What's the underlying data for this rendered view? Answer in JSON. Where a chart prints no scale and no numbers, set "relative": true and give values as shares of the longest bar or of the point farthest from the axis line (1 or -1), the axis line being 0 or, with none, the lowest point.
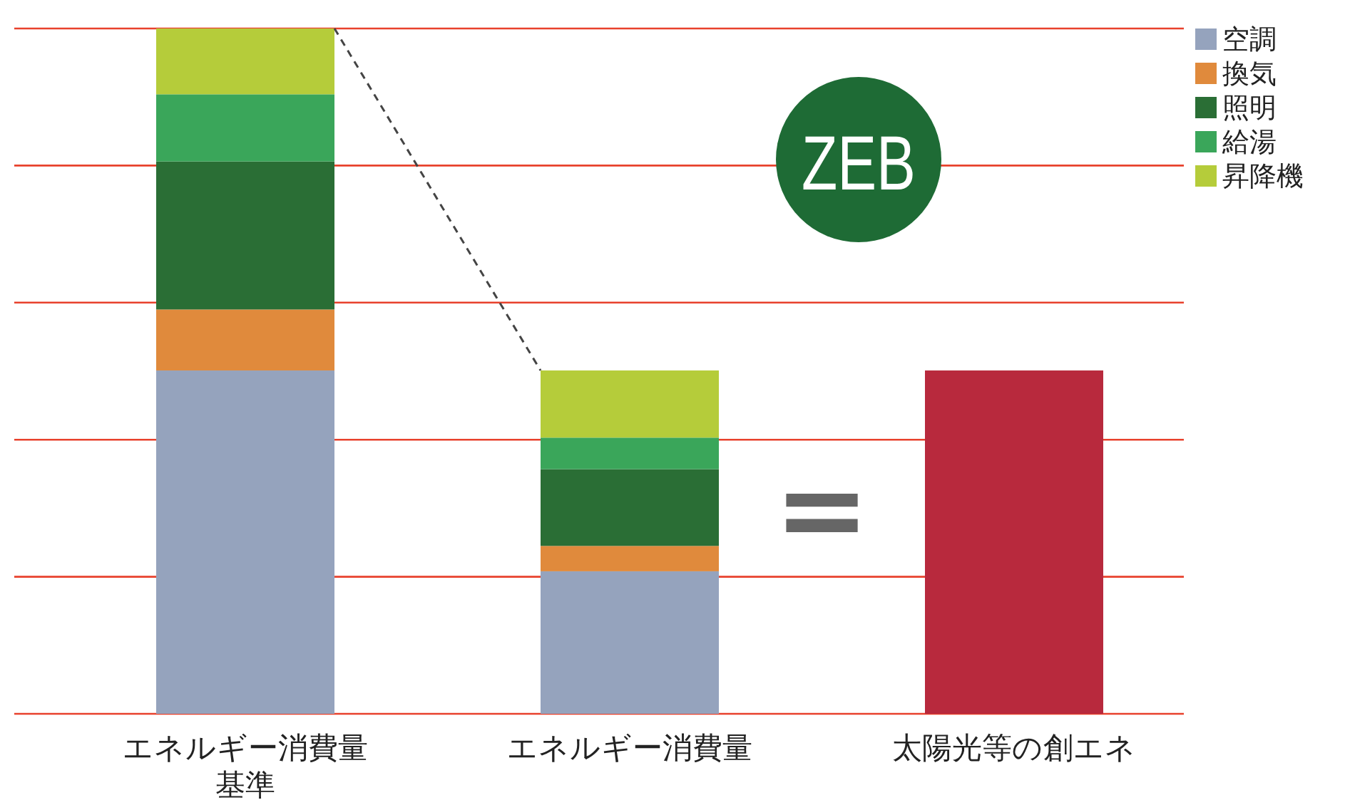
{
  "chart_data": {
    "type": "bar",
    "stacked": true,
    "relative": true,
    "legend": "top right",
    "categories": [
      "エネルギー消費量基準",
      "エネルギー消費量",
      "太陽光等の創エネ"
    ],
    "series": [
      {
        "name": "空調",
        "color": "#95a3bd",
        "values": [
          0.501,
          0.208,
          null
        ]
      },
      {
        "name": "換気",
        "color": "#e08a3c",
        "values": [
          0.089,
          0.037,
          null
        ]
      },
      {
        "name": "照明",
        "color": "#2a6e35",
        "values": [
          0.216,
          0.112,
          null
        ]
      },
      {
        "name": "給湯",
        "color": "#3aa65a",
        "values": [
          0.098,
          0.046,
          null
        ]
      },
      {
        "name": "昇降機",
        "color": "#b5cc3a",
        "values": [
          0.096,
          0.098,
          null
        ]
      },
      {
        "color": "#b8293d",
        "values": [
          null,
          null,
          0.501
        ]
      }
    ],
    "ref_lines": [
      {
        "axis": "y",
        "value": 0.2,
        "color": "#e8412c"
      },
      {
        "axis": "y",
        "value": 0.4,
        "color": "#e8412c"
      },
      {
        "axis": "y",
        "value": 0.6,
        "color": "#e8412c"
      },
      {
        "axis": "y",
        "value": 0.8,
        "color": "#e8412c"
      },
      {
        "axis": "y",
        "value": 1.0,
        "color": "#e8412c"
      }
    ],
    "annotations": [
      "ZEB",
      "="
    ]
  }
}
